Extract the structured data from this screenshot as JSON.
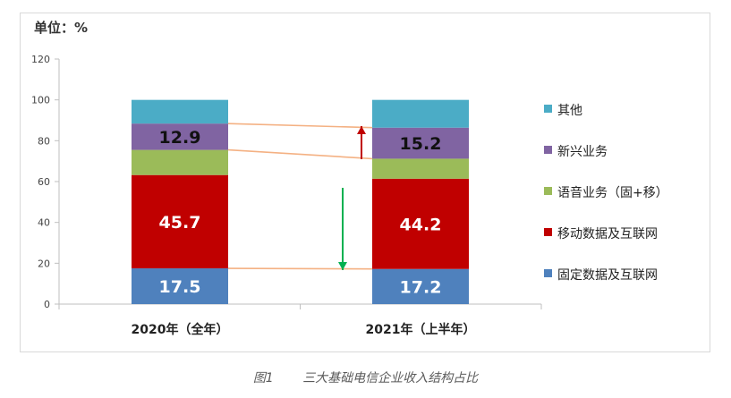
{
  "caption": {
    "figure_label": "图1",
    "title": "三大基础电信企业收入结构占比"
  },
  "chart_data": {
    "type": "bar",
    "stacked": true,
    "unit_label": "单位：%",
    "categories": [
      "2020年（全年）",
      "2021年（上半年）"
    ],
    "ylim": [
      0,
      120
    ],
    "yticks": [
      0,
      20,
      40,
      60,
      80,
      100,
      120
    ],
    "grid": false,
    "legend_position": "right",
    "series": [
      {
        "name": "固定数据及互联网",
        "color": "#4f81bd",
        "values": [
          17.5,
          17.2
        ],
        "labels": [
          "17.5",
          "17.2"
        ]
      },
      {
        "name": "移动数据及互联网",
        "color": "#c00000",
        "values": [
          45.7,
          44.2
        ],
        "labels": [
          "45.7",
          "44.2"
        ]
      },
      {
        "name": "语音业务（固+移）",
        "color": "#9bbb59",
        "values": [
          12.3,
          9.8
        ],
        "labels": [
          "",
          ""
        ]
      },
      {
        "name": "新兴业务",
        "color": "#8064a2",
        "values": [
          12.9,
          15.2
        ],
        "labels": [
          "12.9",
          "15.2"
        ]
      },
      {
        "name": "其他",
        "color": "#4bacc6",
        "values": [
          11.6,
          13.6
        ],
        "labels": [
          "",
          ""
        ]
      }
    ],
    "annotations": {
      "up_arrow_color": "#c00000",
      "down_arrow_color": "#00b050",
      "connector_color": "#f4b183"
    }
  }
}
